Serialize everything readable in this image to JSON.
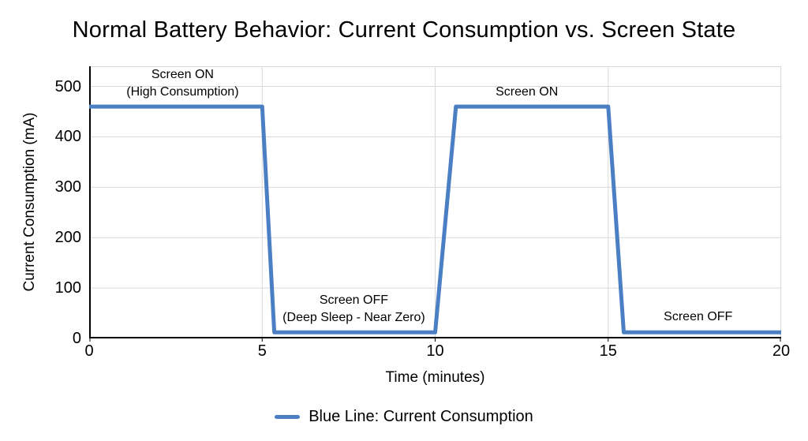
{
  "title": "Normal Battery Behavior: Current Consumption vs. Screen State",
  "colors": {
    "line": "#4b7fc4",
    "grid": "#d9d9d9",
    "axis": "#000000",
    "text": "#000000",
    "background": "#ffffff"
  },
  "legend": {
    "label": "Blue Line: Current Consumption"
  },
  "chart_data": {
    "type": "line",
    "title": "Normal Battery Behavior: Current Consumption vs. Screen State",
    "xlabel": "Time (minutes)",
    "ylabel": "Current Consumption (mA)",
    "xlim": [
      0,
      20
    ],
    "ylim": [
      0,
      540
    ],
    "x_ticks": [
      0,
      5,
      10,
      15,
      20
    ],
    "y_ticks": [
      0,
      100,
      200,
      300,
      400,
      500
    ],
    "grid": true,
    "legend_position": "bottom",
    "series": [
      {
        "name": "Blue Line: Current Consumption",
        "color": "#4b7fc4",
        "points": [
          [
            0,
            460
          ],
          [
            5,
            460
          ],
          [
            5.35,
            12
          ],
          [
            10,
            12
          ],
          [
            10.6,
            460
          ],
          [
            15,
            460
          ],
          [
            15.45,
            12
          ],
          [
            20,
            12
          ]
        ]
      }
    ],
    "annotations": [
      {
        "text": "Screen ON\n(High Consumption)",
        "x": 2.7,
        "y": 505
      },
      {
        "text": "Screen OFF\n(Deep Sleep - Near Zero)",
        "x": 7.65,
        "y": 58
      },
      {
        "text": "Screen ON",
        "x": 12.65,
        "y": 489
      },
      {
        "text": "Screen OFF",
        "x": 17.6,
        "y": 42
      }
    ]
  }
}
